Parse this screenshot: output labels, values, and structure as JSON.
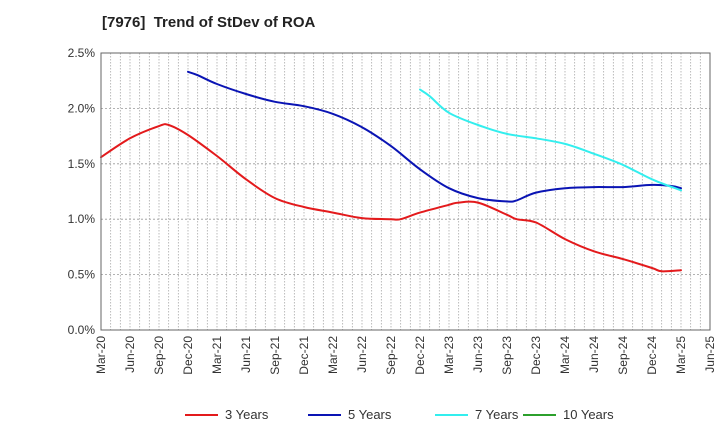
{
  "chart_data": {
    "type": "line",
    "title": "[7976]  Trend of StDev of ROA",
    "xlabel": "",
    "ylabel": "",
    "x_ticks": [
      "Mar-20",
      "Jun-20",
      "Sep-20",
      "Dec-20",
      "Mar-21",
      "Jun-21",
      "Sep-21",
      "Dec-21",
      "Mar-22",
      "Jun-22",
      "Sep-22",
      "Dec-22",
      "Mar-23",
      "Jun-23",
      "Sep-23",
      "Dec-23",
      "Mar-24",
      "Jun-24",
      "Sep-24",
      "Dec-24",
      "Mar-25",
      "Jun-25"
    ],
    "y_ticks": [
      "0.0%",
      "0.5%",
      "1.0%",
      "1.5%",
      "2.0%",
      "2.5%"
    ],
    "ylim": [
      0,
      2.5
    ],
    "y_unit": "%",
    "grid": true,
    "legend_position": "bottom",
    "series": [
      {
        "name": "3 Years",
        "color": "#e31a1c",
        "x": [
          "Mar-20",
          "Jun-20",
          "Sep-20",
          "Oct-20",
          "Dec-20",
          "Mar-21",
          "Jun-21",
          "Sep-21",
          "Dec-21",
          "Mar-22",
          "Jun-22",
          "Sep-22",
          "Oct-22",
          "Dec-22",
          "Mar-23",
          "Apr-23",
          "Jun-23",
          "Sep-23",
          "Oct-23",
          "Dec-23",
          "Mar-24",
          "Jun-24",
          "Sep-24",
          "Dec-24",
          "Jan-25",
          "Mar-25"
        ],
        "values": [
          1.56,
          1.73,
          1.84,
          1.85,
          1.76,
          1.57,
          1.36,
          1.19,
          1.11,
          1.06,
          1.01,
          1.0,
          1.0,
          1.06,
          1.13,
          1.15,
          1.15,
          1.04,
          1.0,
          0.97,
          0.82,
          0.71,
          0.64,
          0.56,
          0.53,
          0.54
        ]
      },
      {
        "name": "5 Years",
        "color": "#0a14b4",
        "x": [
          "Dec-20",
          "Jan-21",
          "Mar-21",
          "Jun-21",
          "Sep-21",
          "Dec-21",
          "Mar-22",
          "Jun-22",
          "Sep-22",
          "Dec-22",
          "Mar-23",
          "Jun-23",
          "Sep-23",
          "Oct-23",
          "Dec-23",
          "Mar-24",
          "Jun-24",
          "Sep-24",
          "Dec-24",
          "Feb-25",
          "Mar-25"
        ],
        "values": [
          2.33,
          2.3,
          2.22,
          2.13,
          2.06,
          2.02,
          1.95,
          1.83,
          1.66,
          1.45,
          1.28,
          1.19,
          1.16,
          1.17,
          1.24,
          1.28,
          1.29,
          1.29,
          1.31,
          1.3,
          1.28
        ]
      },
      {
        "name": "7 Years",
        "color": "#33eeee",
        "x": [
          "Dec-22",
          "Jan-23",
          "Mar-23",
          "Jun-23",
          "Sep-23",
          "Dec-23",
          "Mar-24",
          "Jun-24",
          "Sep-24",
          "Dec-24",
          "Mar-25"
        ],
        "values": [
          2.17,
          2.11,
          1.96,
          1.85,
          1.77,
          1.73,
          1.68,
          1.59,
          1.49,
          1.36,
          1.26
        ]
      },
      {
        "name": "10 Years",
        "color": "#2ca02c",
        "x": [],
        "values": []
      }
    ]
  }
}
